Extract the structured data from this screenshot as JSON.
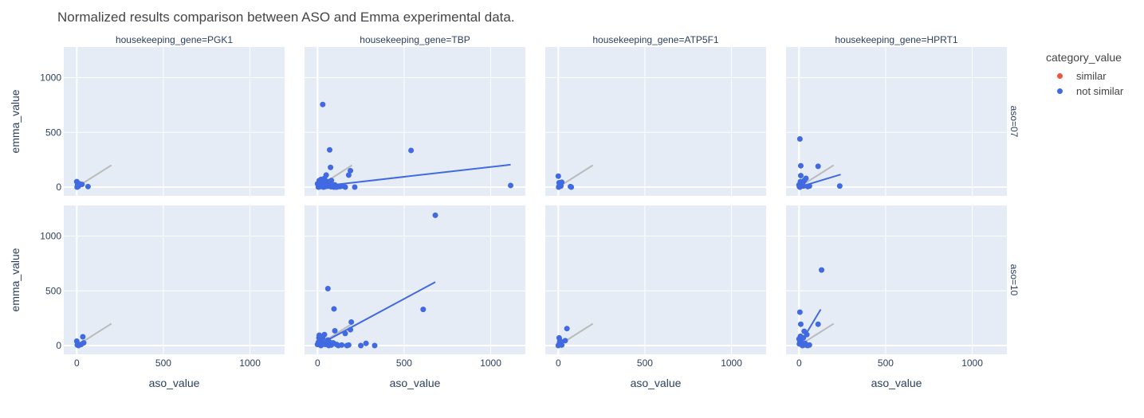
{
  "chart_data": {
    "type": "scatter",
    "title": "Normalized results comparison between ASO and Emma experimental data.",
    "xlabel": "aso_value",
    "ylabel": "emma_value",
    "xlim": [
      -75,
      1200
    ],
    "ylim": [
      -80,
      1280
    ],
    "x_ticks": [
      0,
      500,
      1000
    ],
    "y_ticks": [
      0,
      500,
      1000
    ],
    "grid": true,
    "legend": {
      "title": "category_value",
      "position": "top-right",
      "items": [
        {
          "name": "similar",
          "color": "#EF553B"
        },
        {
          "name": "not similar",
          "color": "#4169E1"
        }
      ]
    },
    "column_facets": [
      "housekeeping_gene=PGK1",
      "housekeeping_gene=TBP",
      "housekeeping_gene=ATP5F1",
      "housekeeping_gene=HPRT1"
    ],
    "row_facets": [
      "aso=07",
      "aso=10"
    ],
    "reference_line": {
      "x": [
        0,
        200
      ],
      "y": [
        0,
        200
      ],
      "color": "#bbbbbb"
    },
    "panels": [
      {
        "row": 0,
        "col": 0,
        "points": [
          [
            0,
            50
          ],
          [
            5,
            20
          ],
          [
            10,
            8
          ],
          [
            15,
            30
          ],
          [
            30,
            25
          ],
          [
            65,
            5
          ],
          [
            2,
            0
          ],
          [
            8,
            12
          ]
        ]
      },
      {
        "row": 0,
        "col": 1,
        "points": [
          [
            30,
            755
          ],
          [
            70,
            340
          ],
          [
            75,
            180
          ],
          [
            190,
            150
          ],
          [
            180,
            110
          ],
          [
            540,
            335
          ],
          [
            1115,
            15
          ],
          [
            215,
            0
          ],
          [
            50,
            110
          ],
          [
            10,
            60
          ],
          [
            20,
            70
          ],
          [
            40,
            80
          ],
          [
            60,
            50
          ],
          [
            80,
            60
          ],
          [
            100,
            20
          ],
          [
            120,
            5
          ],
          [
            140,
            10
          ],
          [
            160,
            0
          ],
          [
            5,
            0
          ],
          [
            15,
            10
          ],
          [
            25,
            20
          ],
          [
            35,
            0
          ],
          [
            45,
            5
          ],
          [
            55,
            15
          ],
          [
            65,
            25
          ],
          [
            85,
            10
          ],
          [
            95,
            0
          ],
          [
            110,
            0
          ],
          [
            130,
            5
          ],
          [
            0,
            30
          ],
          [
            8,
            45
          ],
          [
            12,
            25
          ],
          [
            18,
            5
          ],
          [
            22,
            40
          ],
          [
            28,
            15
          ],
          [
            38,
            35
          ],
          [
            48,
            20
          ],
          [
            58,
            8
          ],
          [
            68,
            12
          ],
          [
            78,
            3
          ],
          [
            88,
            18
          ]
        ],
        "trend": {
          "x": [
            5,
            1115
          ],
          "y": [
            5,
            205
          ]
        }
      },
      {
        "row": 0,
        "col": 2,
        "points": [
          [
            0,
            100
          ],
          [
            5,
            40
          ],
          [
            20,
            45
          ],
          [
            15,
            10
          ],
          [
            70,
            5
          ],
          [
            75,
            0
          ],
          [
            2,
            0
          ],
          [
            8,
            20
          ]
        ]
      },
      {
        "row": 0,
        "col": 3,
        "points": [
          [
            5,
            440
          ],
          [
            10,
            195
          ],
          [
            110,
            190
          ],
          [
            10,
            105
          ],
          [
            40,
            80
          ],
          [
            30,
            60
          ],
          [
            235,
            10
          ],
          [
            0,
            20
          ],
          [
            5,
            0
          ],
          [
            15,
            40
          ],
          [
            20,
            30
          ],
          [
            25,
            10
          ],
          [
            50,
            5
          ],
          [
            60,
            10
          ],
          [
            8,
            50
          ],
          [
            2,
            5
          ]
        ],
        "trend": {
          "x": [
            0,
            240
          ],
          "y": [
            0,
            115
          ]
        }
      },
      {
        "row": 1,
        "col": 0,
        "points": [
          [
            0,
            40
          ],
          [
            5,
            15
          ],
          [
            35,
            80
          ],
          [
            40,
            25
          ],
          [
            25,
            10
          ],
          [
            10,
            0
          ],
          [
            3,
            5
          ]
        ]
      },
      {
        "row": 1,
        "col": 1,
        "points": [
          [
            680,
            1190
          ],
          [
            60,
            520
          ],
          [
            95,
            335
          ],
          [
            610,
            330
          ],
          [
            195,
            215
          ],
          [
            190,
            145
          ],
          [
            160,
            110
          ],
          [
            100,
            135
          ],
          [
            250,
            0
          ],
          [
            280,
            20
          ],
          [
            330,
            0
          ],
          [
            10,
            95
          ],
          [
            40,
            100
          ],
          [
            30,
            70
          ],
          [
            60,
            50
          ],
          [
            70,
            30
          ],
          [
            85,
            20
          ],
          [
            110,
            10
          ],
          [
            140,
            5
          ],
          [
            170,
            0
          ],
          [
            180,
            5
          ],
          [
            0,
            10
          ],
          [
            5,
            30
          ],
          [
            15,
            40
          ],
          [
            20,
            0
          ],
          [
            25,
            60
          ],
          [
            35,
            20
          ],
          [
            45,
            10
          ],
          [
            55,
            40
          ],
          [
            65,
            0
          ],
          [
            75,
            15
          ],
          [
            80,
            5
          ],
          [
            90,
            25
          ],
          [
            120,
            0
          ],
          [
            8,
            70
          ],
          [
            12,
            55
          ],
          [
            18,
            15
          ]
        ],
        "trend": {
          "x": [
            5,
            680
          ],
          "y": [
            5,
            580
          ]
        }
      },
      {
        "row": 1,
        "col": 2,
        "points": [
          [
            50,
            155
          ],
          [
            5,
            70
          ],
          [
            10,
            45
          ],
          [
            40,
            45
          ],
          [
            0,
            0
          ],
          [
            5,
            10
          ],
          [
            15,
            20
          ],
          [
            20,
            5
          ],
          [
            8,
            30
          ]
        ]
      },
      {
        "row": 1,
        "col": 3,
        "points": [
          [
            130,
            690
          ],
          [
            5,
            305
          ],
          [
            10,
            195
          ],
          [
            110,
            195
          ],
          [
            30,
            130
          ],
          [
            45,
            100
          ],
          [
            0,
            60
          ],
          [
            5,
            30
          ],
          [
            10,
            45
          ],
          [
            15,
            10
          ],
          [
            20,
            0
          ],
          [
            25,
            70
          ],
          [
            35,
            20
          ],
          [
            40,
            5
          ],
          [
            50,
            0
          ],
          [
            60,
            5
          ],
          [
            8,
            85
          ],
          [
            2,
            15
          ]
        ],
        "trend": {
          "x": [
            0,
            125
          ],
          "y": [
            0,
            330
          ]
        }
      }
    ]
  }
}
